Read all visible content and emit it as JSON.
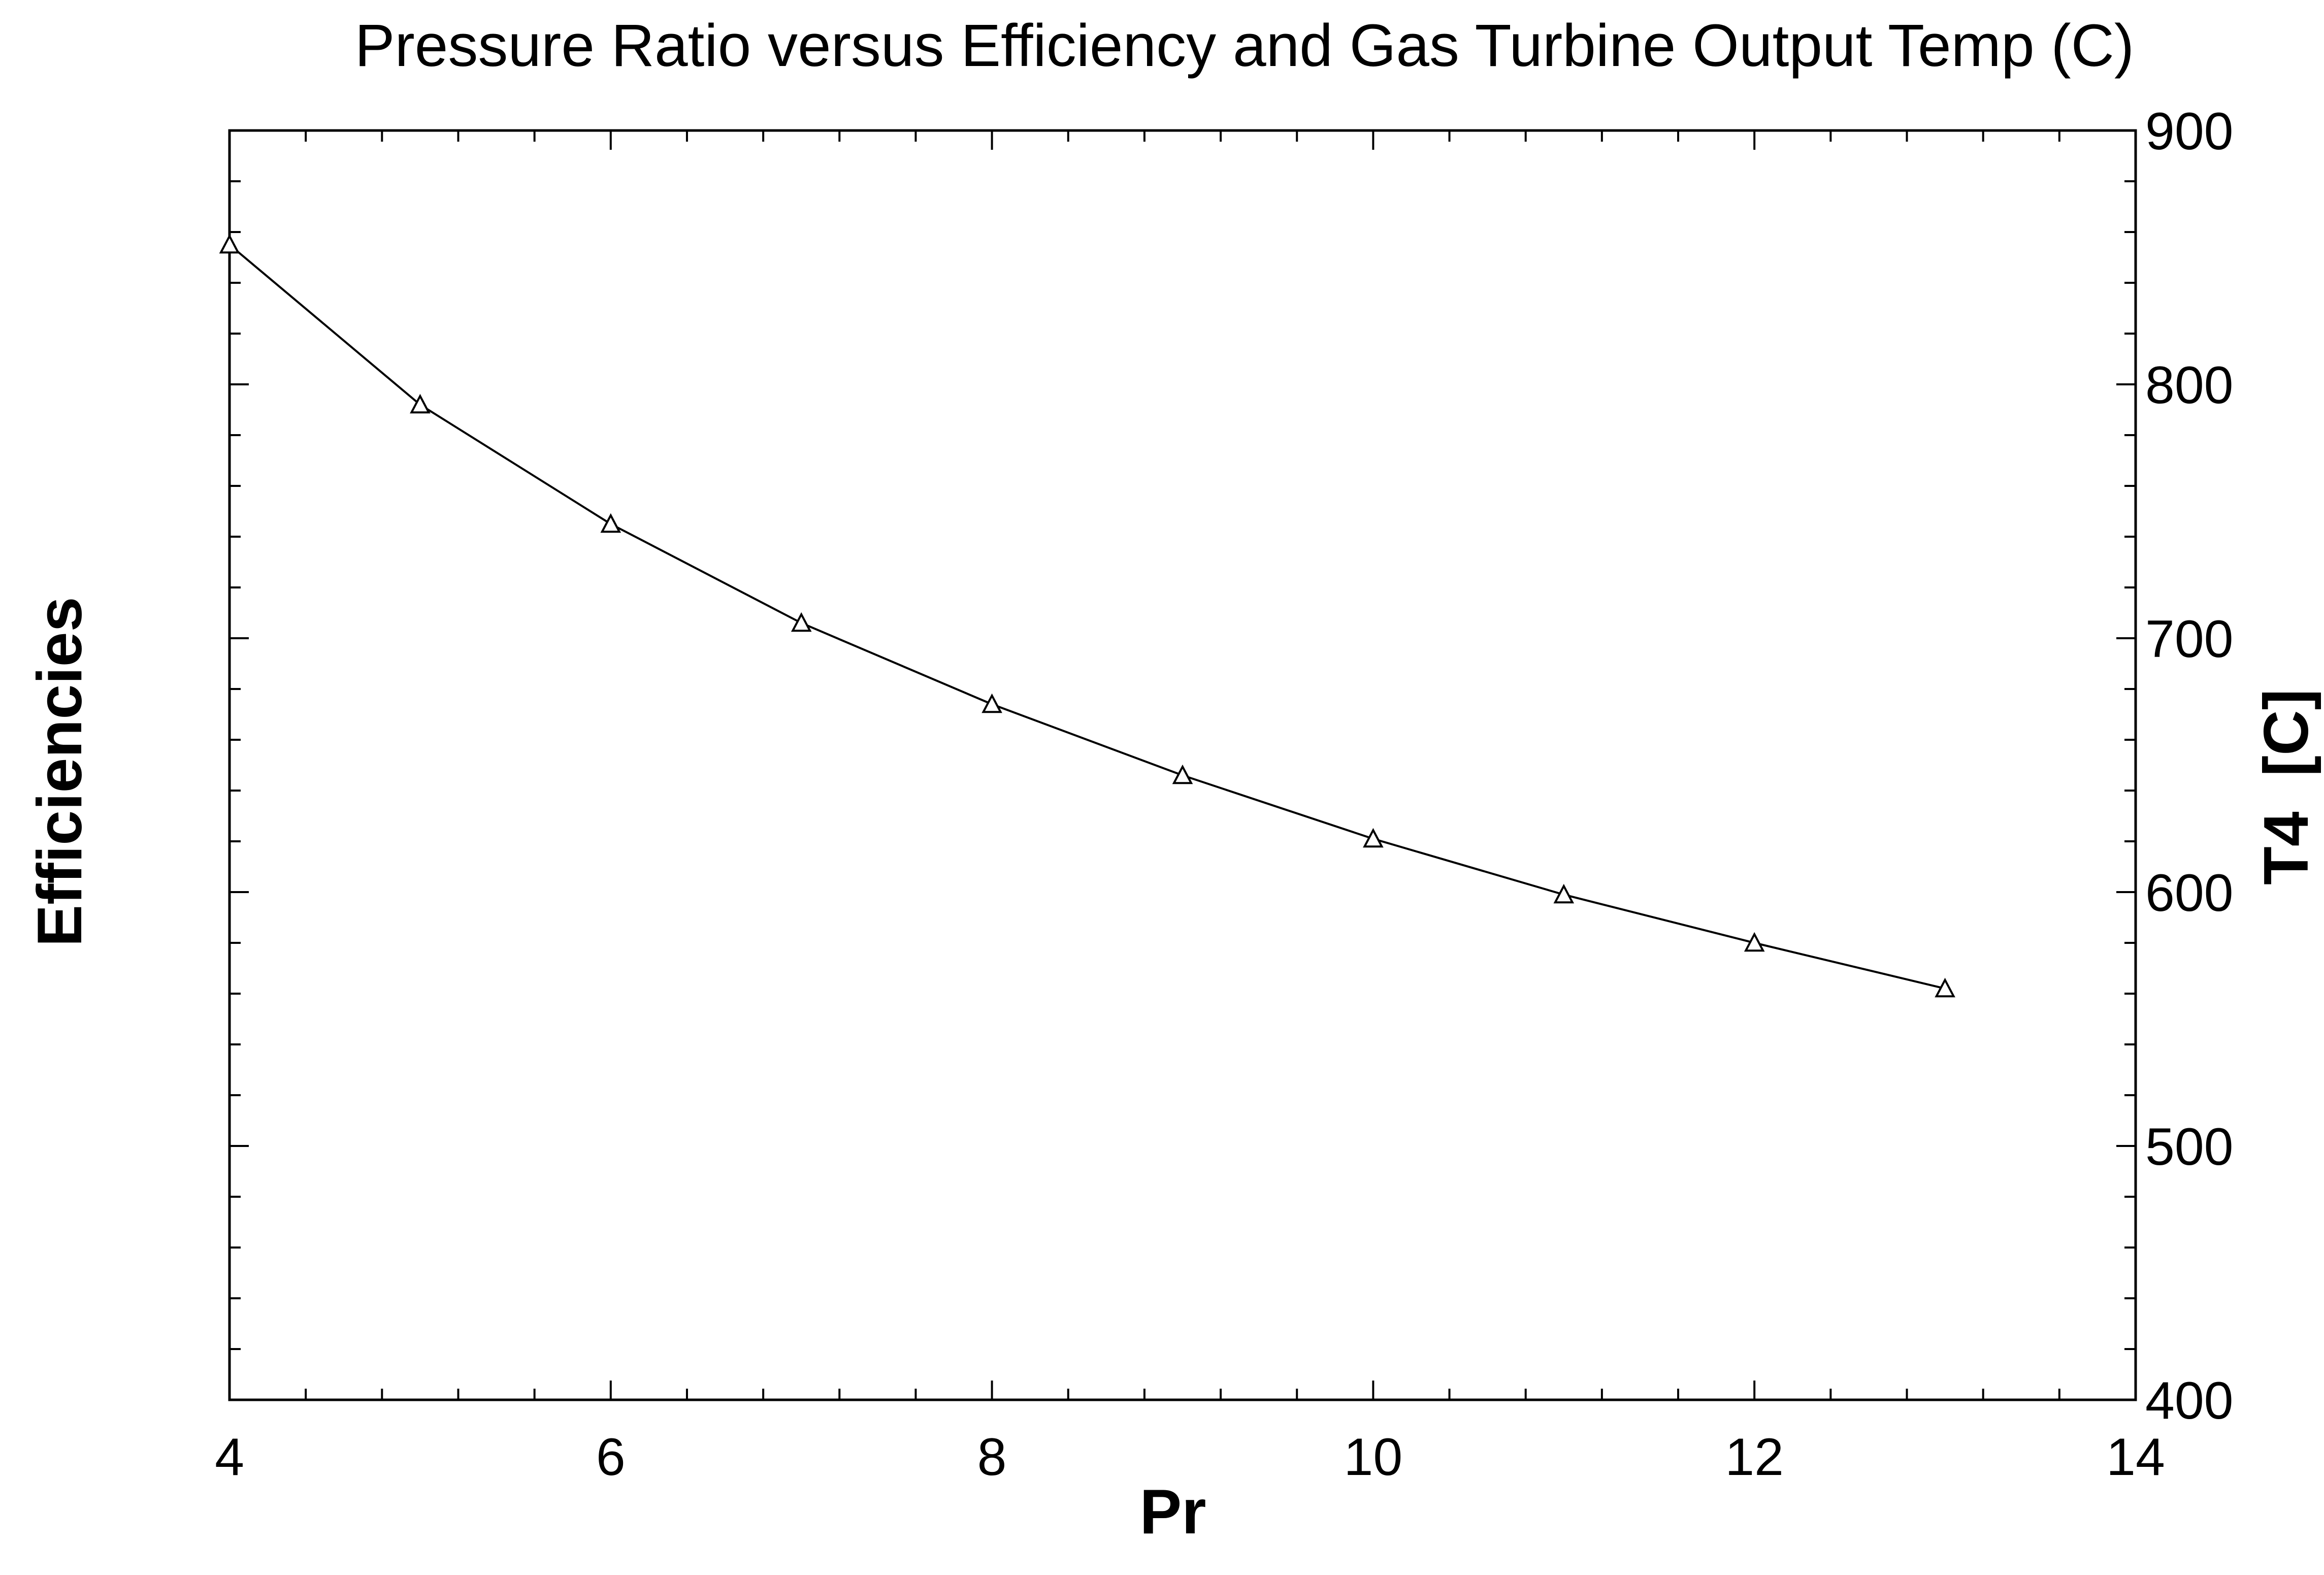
{
  "chart_data": {
    "type": "line",
    "title": "Pressure Ratio versus Efficiency and Gas Turbine Output Temp (C)",
    "xlabel": "Pr",
    "ylabel_left": "Efficiencies",
    "ylabel_right": "T4  [C]",
    "xlim": [
      4,
      14
    ],
    "ylim_right": [
      400,
      900
    ],
    "x_ticks": [
      4,
      6,
      8,
      10,
      12,
      14
    ],
    "x_tick_labels": [
      "4",
      "6",
      "8",
      "10",
      "12",
      "14"
    ],
    "y_right_ticks": [
      400,
      500,
      600,
      700,
      800,
      900
    ],
    "y_right_tick_labels": [
      "400",
      "500",
      "600",
      "700",
      "800",
      "900"
    ],
    "grid": false,
    "series": [
      {
        "axis": "right",
        "marker": "triangle",
        "color": "#000000",
        "x": [
          4,
          5,
          6,
          7,
          8,
          9,
          10,
          11,
          12,
          13
        ],
        "y": [
          855,
          792,
          745,
          706,
          674,
          646,
          621,
          599,
          580,
          562
        ]
      }
    ]
  }
}
